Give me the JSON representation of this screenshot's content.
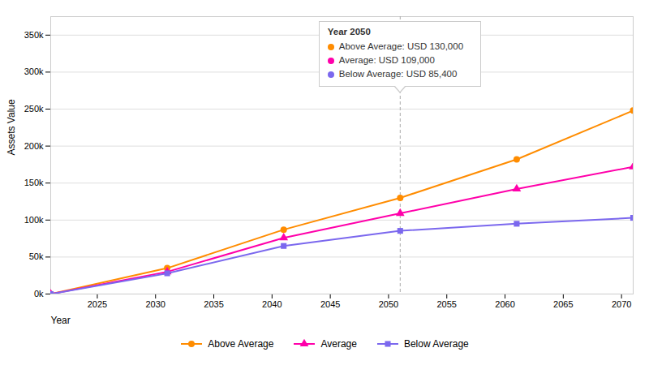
{
  "chart_data": {
    "type": "line",
    "xlabel": "Year",
    "ylabel": "Assets Value",
    "x": [
      2021,
      2031,
      2041,
      2051,
      2061,
      2071
    ],
    "series": [
      {
        "name": "Above Average",
        "color": "#FF8C00",
        "marker": "circle",
        "values": [
          0,
          35000,
          87000,
          130000,
          182000,
          248000
        ]
      },
      {
        "name": "Average",
        "color": "#FF00AA",
        "marker": "triangle",
        "values": [
          0,
          30000,
          76000,
          109000,
          142000,
          172000
        ]
      },
      {
        "name": "Below Average",
        "color": "#7B68EE",
        "marker": "square",
        "values": [
          0,
          28000,
          65000,
          85400,
          95000,
          103000
        ]
      }
    ],
    "xlim": [
      2021,
      2071
    ],
    "ylim": [
      0,
      375000
    ],
    "xticks": [
      2025,
      2030,
      2035,
      2040,
      2045,
      2050,
      2055,
      2060,
      2065,
      2070
    ],
    "yticks": [
      {
        "value": 0,
        "label": "0k"
      },
      {
        "value": 50000,
        "label": "50k"
      },
      {
        "value": 100000,
        "label": "100k"
      },
      {
        "value": 150000,
        "label": "150k"
      },
      {
        "value": 200000,
        "label": "200k"
      },
      {
        "value": 250000,
        "label": "250k"
      },
      {
        "value": 300000,
        "label": "300k"
      },
      {
        "value": 350000,
        "label": "350k"
      }
    ],
    "grid": true,
    "legend": "bottom",
    "annotations": [
      {
        "x": 2051,
        "title": "Year 2050",
        "labels": [
          "Above Average: USD 130,000",
          "Average: USD 109,000",
          "Below Average: USD 85,400"
        ]
      }
    ]
  }
}
